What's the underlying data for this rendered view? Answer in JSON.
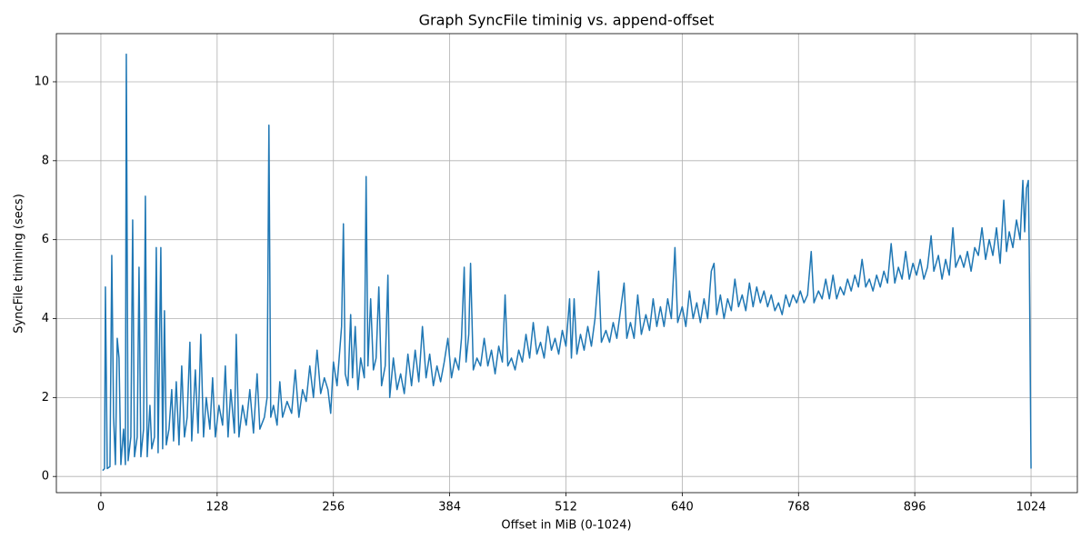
{
  "chart_data": {
    "type": "line",
    "title": "Graph SyncFile timinig vs. append-offset",
    "x_label": "Offset in MiB (0-1024)",
    "y_label": "SyncFile timining (secs)",
    "x": [
      2,
      4,
      5,
      7,
      10,
      12,
      14,
      16,
      18,
      20,
      22,
      25,
      27,
      28,
      30,
      33,
      35,
      37,
      40,
      42,
      44,
      47,
      49,
      51,
      54,
      56,
      59,
      61,
      63,
      66,
      68,
      70,
      72,
      75,
      78,
      80,
      83,
      86,
      89,
      92,
      95,
      98,
      100,
      104,
      107,
      110,
      113,
      116,
      120,
      123,
      126,
      130,
      134,
      137,
      140,
      143,
      147,
      149,
      152,
      156,
      160,
      164,
      168,
      172,
      175,
      180,
      183,
      185,
      187,
      190,
      194,
      197,
      200,
      205,
      210,
      214,
      218,
      222,
      226,
      230,
      234,
      238,
      242,
      246,
      250,
      253,
      256,
      260,
      265,
      267,
      269,
      272,
      275,
      277,
      280,
      283,
      286,
      290,
      292,
      294,
      297,
      300,
      303,
      306,
      309,
      313,
      316,
      318,
      322,
      326,
      330,
      334,
      338,
      342,
      346,
      350,
      354,
      358,
      362,
      366,
      370,
      374,
      378,
      382,
      386,
      390,
      394,
      397,
      400,
      402,
      405,
      407,
      410,
      414,
      418,
      422,
      426,
      430,
      434,
      438,
      442,
      445,
      448,
      452,
      456,
      460,
      464,
      468,
      472,
      476,
      480,
      484,
      488,
      492,
      496,
      500,
      504,
      508,
      512,
      516,
      518,
      521,
      524,
      528,
      532,
      536,
      540,
      544,
      548,
      551,
      556,
      560,
      564,
      568,
      572,
      576,
      579,
      583,
      587,
      591,
      595,
      600,
      604,
      608,
      612,
      616,
      620,
      624,
      628,
      632,
      635,
      640,
      644,
      648,
      652,
      656,
      660,
      664,
      668,
      672,
      675,
      678,
      682,
      686,
      690,
      694,
      698,
      702,
      706,
      710,
      714,
      718,
      722,
      726,
      730,
      734,
      738,
      742,
      746,
      750,
      754,
      758,
      762,
      766,
      770,
      774,
      778,
      782,
      785,
      790,
      794,
      798,
      802,
      806,
      810,
      814,
      818,
      822,
      826,
      830,
      834,
      838,
      842,
      846,
      850,
      854,
      858,
      862,
      866,
      870,
      874,
      878,
      882,
      886,
      890,
      894,
      898,
      902,
      906,
      910,
      914,
      917,
      922,
      926,
      930,
      934,
      938,
      941,
      946,
      950,
      954,
      958,
      962,
      966,
      970,
      974,
      978,
      982,
      986,
      990,
      994,
      997,
      1000,
      1004,
      1008,
      1012,
      1015,
      1017,
      1019,
      1021,
      1022,
      1024
    ],
    "series": [
      {
        "color": "#1f77b4",
        "values": [
          0.15,
          0.2,
          4.8,
          0.2,
          0.25,
          5.6,
          1.5,
          0.3,
          3.5,
          3.0,
          0.3,
          1.2,
          0.3,
          10.7,
          0.4,
          1.0,
          6.5,
          0.5,
          1.0,
          5.3,
          0.5,
          1.2,
          7.1,
          0.5,
          1.8,
          0.7,
          1.0,
          5.8,
          0.6,
          5.8,
          0.7,
          4.2,
          0.8,
          1.2,
          2.2,
          0.9,
          2.4,
          0.8,
          2.8,
          1.0,
          1.5,
          3.4,
          0.9,
          2.7,
          1.1,
          3.6,
          1.0,
          2.0,
          1.2,
          2.5,
          1.0,
          1.8,
          1.3,
          2.8,
          1.0,
          2.2,
          1.1,
          3.6,
          1.0,
          1.8,
          1.3,
          2.2,
          1.1,
          2.6,
          1.2,
          1.5,
          2.0,
          8.9,
          1.5,
          1.8,
          1.3,
          2.4,
          1.5,
          1.9,
          1.6,
          2.7,
          1.5,
          2.2,
          1.9,
          2.8,
          2.0,
          3.2,
          2.1,
          2.5,
          2.2,
          1.6,
          2.9,
          2.3,
          3.8,
          6.4,
          2.6,
          2.3,
          4.1,
          2.5,
          3.8,
          2.2,
          3.0,
          2.5,
          7.6,
          2.8,
          4.5,
          2.7,
          3.0,
          4.8,
          2.3,
          2.8,
          5.1,
          2.0,
          3.0,
          2.2,
          2.6,
          2.1,
          3.1,
          2.3,
          3.2,
          2.4,
          3.8,
          2.5,
          3.1,
          2.3,
          2.8,
          2.4,
          2.9,
          3.5,
          2.5,
          3.0,
          2.7,
          3.5,
          5.3,
          2.9,
          3.6,
          5.4,
          2.7,
          3.0,
          2.8,
          3.5,
          2.8,
          3.2,
          2.6,
          3.3,
          2.9,
          4.6,
          2.8,
          3.0,
          2.7,
          3.2,
          2.9,
          3.6,
          3.0,
          3.9,
          3.1,
          3.4,
          3.0,
          3.8,
          3.2,
          3.5,
          3.1,
          3.7,
          3.3,
          4.5,
          3.0,
          4.5,
          3.1,
          3.6,
          3.2,
          3.8,
          3.3,
          4.0,
          5.2,
          3.4,
          3.7,
          3.4,
          3.9,
          3.5,
          4.2,
          4.9,
          3.5,
          3.9,
          3.5,
          4.6,
          3.6,
          4.1,
          3.7,
          4.5,
          3.8,
          4.3,
          3.8,
          4.5,
          4.0,
          5.8,
          3.9,
          4.3,
          3.8,
          4.7,
          4.0,
          4.4,
          3.9,
          4.5,
          4.0,
          5.2,
          5.4,
          4.1,
          4.6,
          4.0,
          4.5,
          4.2,
          5.0,
          4.3,
          4.6,
          4.2,
          4.9,
          4.3,
          4.8,
          4.4,
          4.7,
          4.3,
          4.6,
          4.2,
          4.4,
          4.1,
          4.6,
          4.3,
          4.6,
          4.4,
          4.7,
          4.4,
          4.6,
          5.7,
          4.4,
          4.7,
          4.5,
          5.0,
          4.5,
          5.1,
          4.5,
          4.8,
          4.6,
          5.0,
          4.7,
          5.1,
          4.8,
          5.5,
          4.8,
          5.0,
          4.7,
          5.1,
          4.8,
          5.2,
          4.9,
          5.9,
          4.9,
          5.3,
          5.0,
          5.7,
          5.0,
          5.4,
          5.1,
          5.5,
          5.0,
          5.3,
          6.1,
          5.2,
          5.6,
          5.0,
          5.5,
          5.1,
          6.3,
          5.3,
          5.6,
          5.3,
          5.7,
          5.2,
          5.8,
          5.6,
          6.3,
          5.5,
          6.0,
          5.6,
          6.3,
          5.4,
          7.0,
          5.7,
          6.2,
          5.8,
          6.5,
          6.0,
          7.5,
          6.2,
          7.3,
          7.5,
          5.8,
          0.2
        ]
      }
    ],
    "xlim": [
      -49,
      1075
    ],
    "ylim": [
      -0.41,
      11.22
    ],
    "xticks": [
      0,
      128,
      256,
      384,
      512,
      640,
      768,
      896,
      1024
    ],
    "yticks": [
      0,
      2,
      4,
      6,
      8,
      10
    ],
    "grid": true
  }
}
